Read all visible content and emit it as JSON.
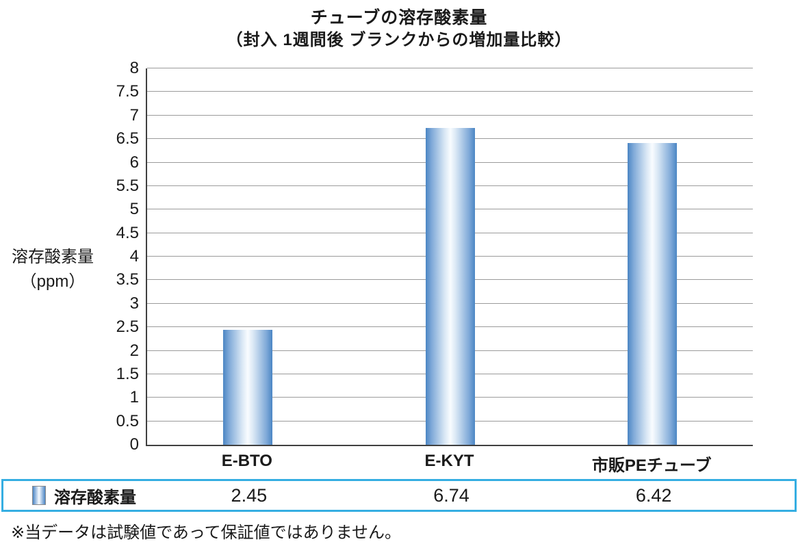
{
  "title": "チューブの溶存酸素量",
  "subtitle": "（封入 1週間後 ブランクからの増加量比較）",
  "footer_note": "※当データは試験値であって保証値ではありません。",
  "chart_data": {
    "type": "bar",
    "title": "チューブの溶存酸素量",
    "subtitle": "（封入 1週間後 ブランクからの増加量比較）",
    "categories": [
      "E-BTO",
      "E-KYT",
      "市販PEチューブ"
    ],
    "series": [
      {
        "name": "溶存酸素量",
        "values": [
          2.45,
          6.74,
          6.42
        ]
      }
    ],
    "ylabel_line1": "溶存酸素量",
    "ylabel_line2": "（ppm）",
    "ylim": [
      0,
      8
    ],
    "ytick_step": 0.5,
    "grid": true,
    "legend_position": "bottom-table"
  },
  "table": {
    "legend_label": "溶存酸素量",
    "value_decimals": 2
  },
  "colors": {
    "bar_edge": "#4b86c4",
    "bar_center": "#f9fcff",
    "table_border": "#35aee2",
    "grid_line": "#9b9b9b",
    "axis_line": "#3f3f3f"
  }
}
